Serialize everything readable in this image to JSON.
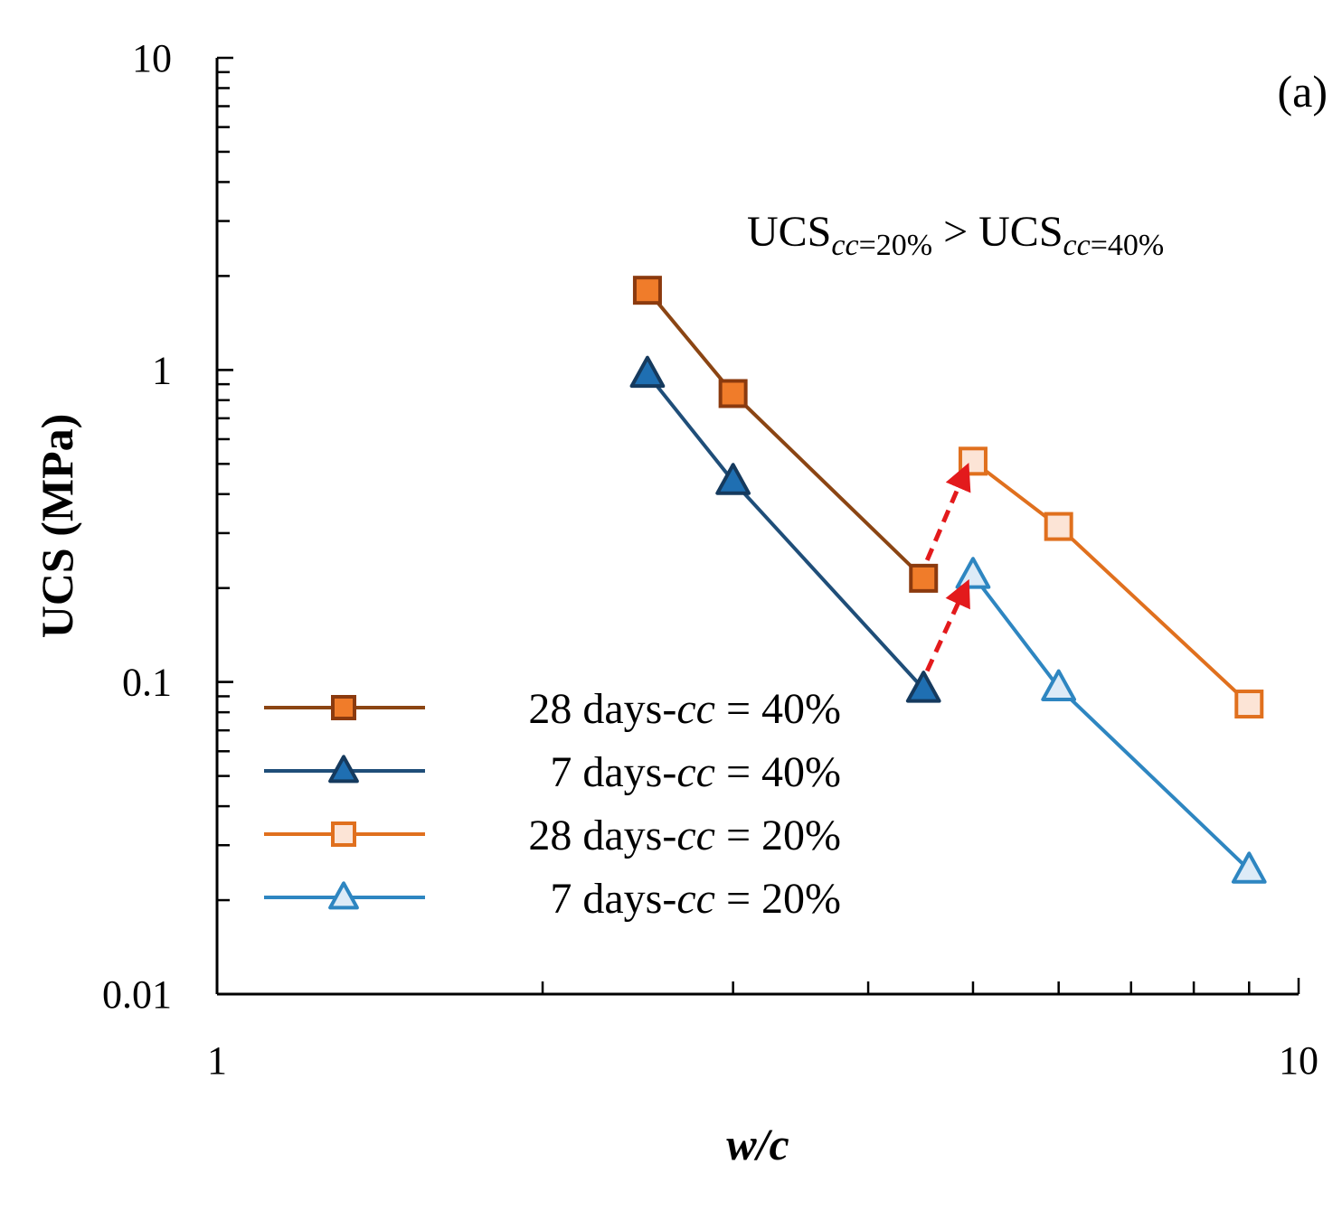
{
  "chart_data": {
    "type": "line",
    "panel_label": "(a)",
    "annotation": {
      "lhs_main": "UCS",
      "lhs_sub_italic": "cc",
      "lhs_sub_rest": "=20%",
      "operator": " > ",
      "rhs_main": "UCS",
      "rhs_sub_italic": "cc",
      "rhs_sub_rest": "=40%"
    },
    "xlabel": "w/c",
    "ylabel": "UCS (MPa)",
    "x_scale": "log",
    "y_scale": "log",
    "xlim": [
      1,
      10
    ],
    "ylim": [
      0.01,
      10
    ],
    "x_ticks": [
      {
        "value": 1,
        "label": "1"
      },
      {
        "value": 10,
        "label": "10"
      }
    ],
    "y_ticks": [
      {
        "value": 0.01,
        "label": "0.01"
      },
      {
        "value": 0.1,
        "label": "0.1"
      },
      {
        "value": 1,
        "label": "1"
      },
      {
        "value": 10,
        "label": "10"
      }
    ],
    "grid": false,
    "legend_position": "lower-left",
    "series": [
      {
        "name_prefix": "28 days-",
        "name_italic": "cc",
        "name_suffix": " = 40%",
        "marker": "square",
        "filled": true,
        "line_color": "#8B4513",
        "marker_fill": "#F07C2A",
        "marker_stroke": "#8B3A0E",
        "x": [
          2.5,
          3.0,
          4.5
        ],
        "y": [
          1.8,
          0.84,
          0.215
        ]
      },
      {
        "name_prefix": "7 days-",
        "name_italic": "cc",
        "name_suffix": " = 40%",
        "marker": "triangle",
        "filled": true,
        "line_color": "#1F4E79",
        "marker_fill": "#1F6FB2",
        "marker_stroke": "#153A5E",
        "x": [
          2.5,
          3.0,
          4.5
        ],
        "y": [
          0.97,
          0.44,
          0.095
        ]
      },
      {
        "name_prefix": "28 days-",
        "name_italic": "cc",
        "name_suffix": " = 20%",
        "marker": "square",
        "filled": false,
        "line_color": "#E0701E",
        "marker_fill": "#FCE4D6",
        "marker_stroke": "#E0701E",
        "x": [
          5.0,
          6.0,
          9.0
        ],
        "y": [
          0.51,
          0.315,
          0.085
        ]
      },
      {
        "name_prefix": "7 days-",
        "name_italic": "cc",
        "name_suffix": " = 20%",
        "marker": "triangle",
        "filled": false,
        "line_color": "#2E86C1",
        "marker_fill": "#DDEBF7",
        "marker_stroke": "#2E86C1",
        "x": [
          5.0,
          6.0,
          9.0
        ],
        "y": [
          0.22,
          0.096,
          0.025
        ]
      }
    ],
    "arrows": [
      {
        "color": "#E31A1C",
        "style": "dashed",
        "from": [
          4.5,
          0.215
        ],
        "to": [
          4.9,
          0.46
        ]
      },
      {
        "color": "#E31A1C",
        "style": "dashed",
        "from": [
          4.5,
          0.095
        ],
        "to": [
          4.9,
          0.195
        ]
      }
    ]
  }
}
